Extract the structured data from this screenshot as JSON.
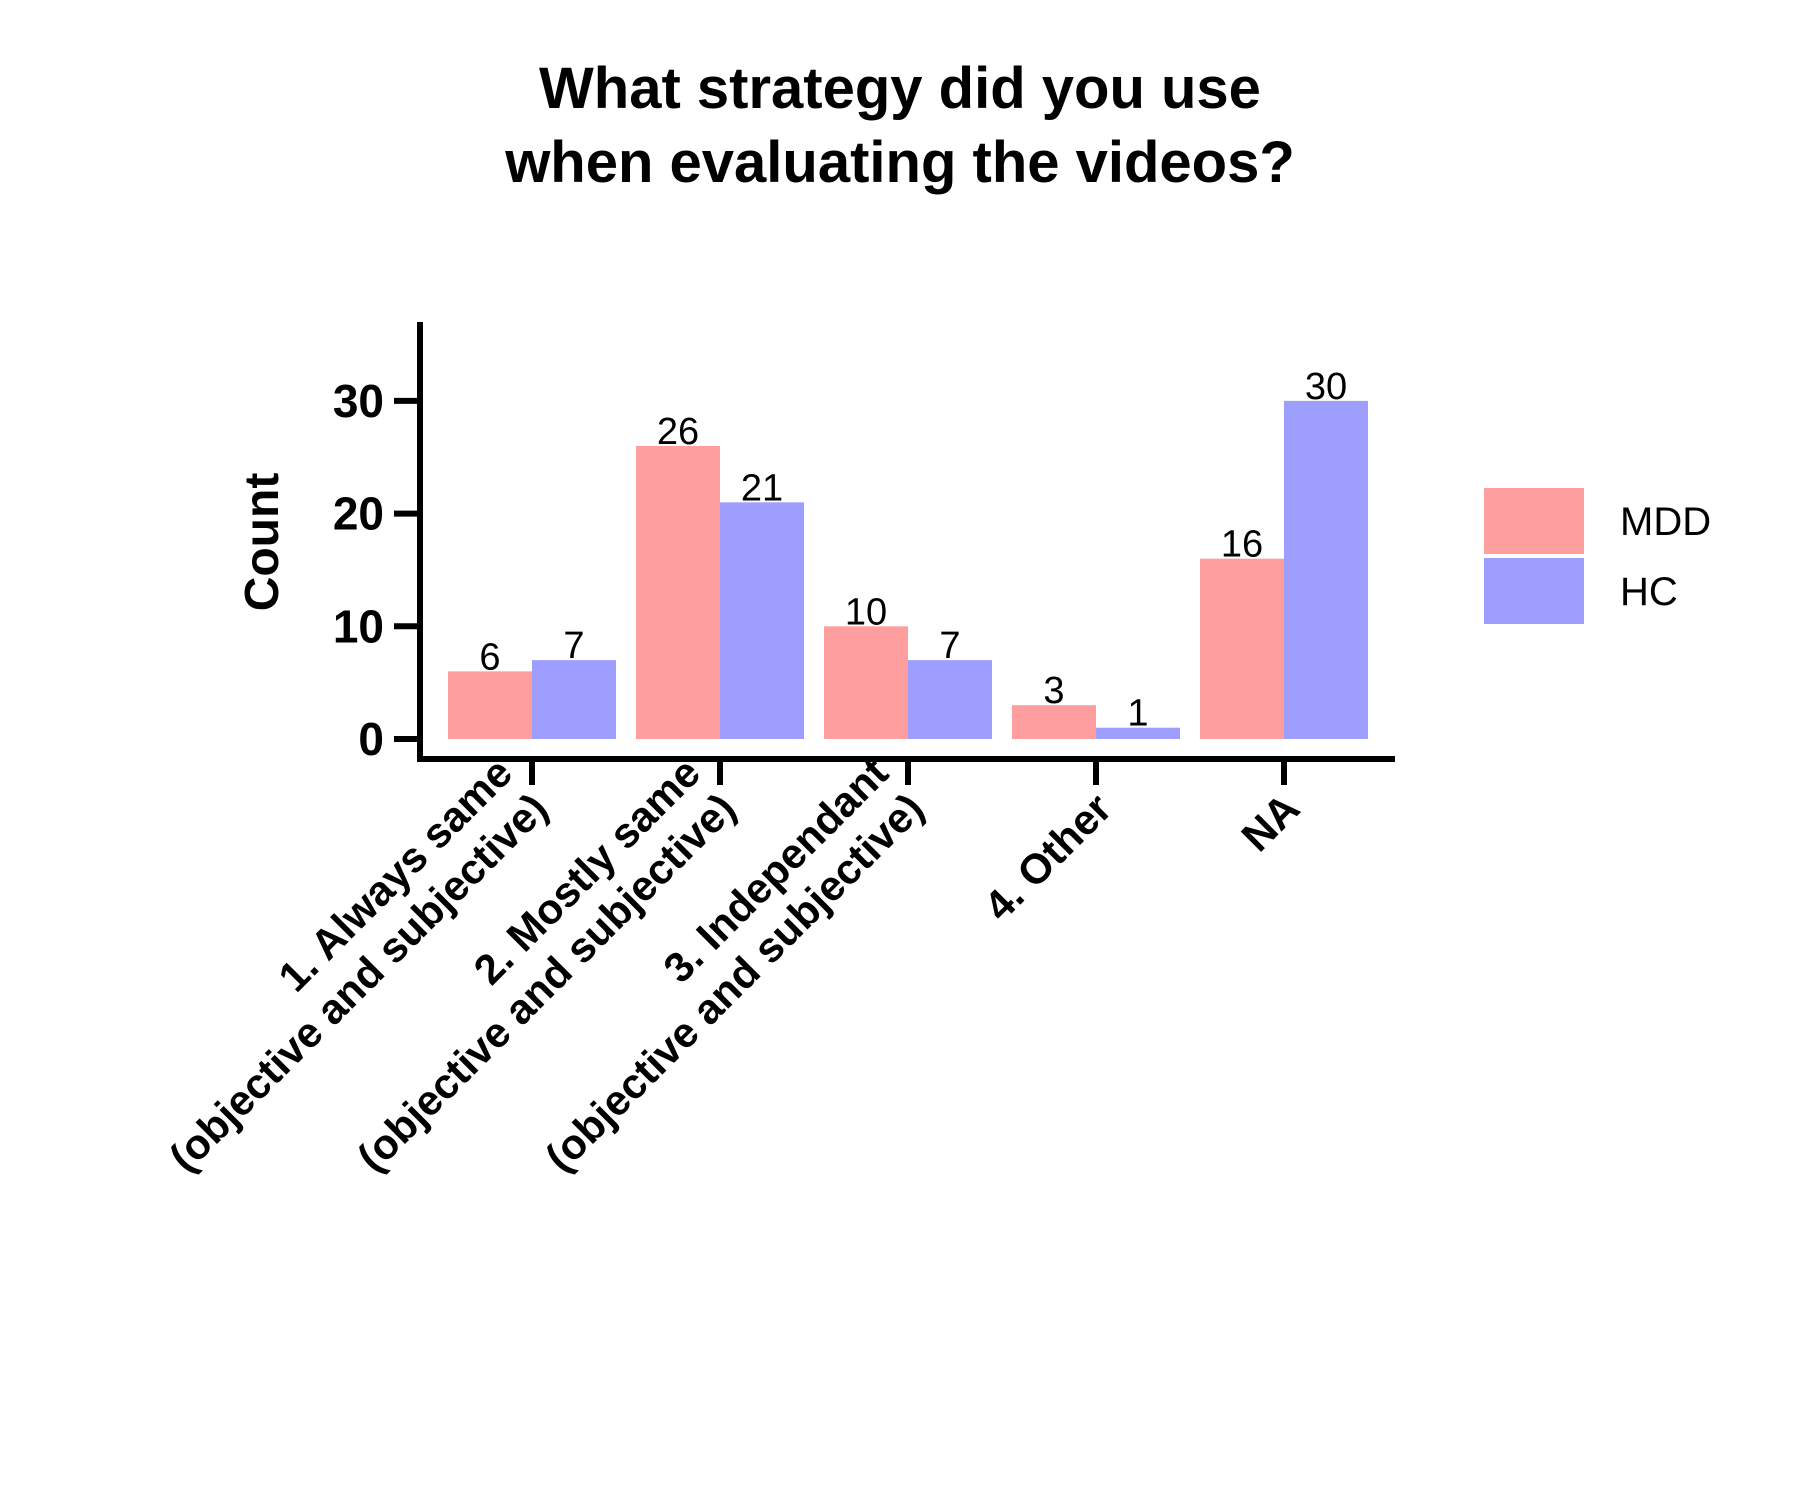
{
  "chart_data": {
    "type": "bar",
    "title": [
      "What strategy did you use",
      "when evaluating the videos?"
    ],
    "ylabel": "Count",
    "xlabel": "",
    "ylim": [
      0,
      37
    ],
    "yticks": [
      0,
      10,
      20,
      30
    ],
    "categories": [
      [
        "1. Always same",
        "(objective and subjective)"
      ],
      [
        "2. Mostly same",
        "(objective and subjective)"
      ],
      [
        "3. Independant",
        "(objective and subjective)"
      ],
      [
        "4. Other"
      ],
      [
        "NA"
      ]
    ],
    "series": [
      {
        "name": "MDD",
        "color": "#ff9e9e",
        "values": [
          6,
          26,
          10,
          3,
          16
        ]
      },
      {
        "name": "HC",
        "color": "#9e9eff",
        "values": [
          7,
          21,
          7,
          1,
          30
        ]
      }
    ],
    "legend_position": "right",
    "grid": false
  }
}
